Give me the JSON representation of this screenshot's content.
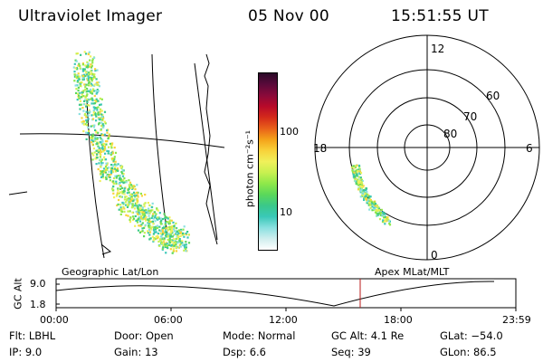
{
  "header": {
    "instrument": "Ultraviolet Imager",
    "date": "05 Nov 00",
    "time": "15:51:55 UT"
  },
  "colorbar": {
    "unit_label": "photon cm⁻²s⁻¹",
    "ticks": [
      "100",
      "10"
    ],
    "colors": [
      "#2a0a28",
      "#5a0a3a",
      "#8a0a3a",
      "#b80a2a",
      "#d42a1a",
      "#e8601a",
      "#f4a21a",
      "#f8d23a",
      "#f0f05a",
      "#c8f050",
      "#8ee84a",
      "#5ad85a",
      "#3ac88a",
      "#3ac8b8",
      "#8ae0e0",
      "#cfeeee",
      "#ffffff"
    ]
  },
  "left_panel": {
    "label": "Geographic Lat/Lon"
  },
  "right_panel": {
    "label": "Apex MLat/MLT",
    "mlt_labels": [
      "12",
      "18",
      "6",
      "0"
    ],
    "lat_labels": [
      "60",
      "70",
      "80"
    ]
  },
  "altitude_plot": {
    "ylabel": "GC Alt",
    "yticks": [
      "9.0",
      "1.8"
    ],
    "time_ticks": [
      "00:00",
      "06:00",
      "12:00",
      "18:00",
      "23:59"
    ],
    "marker_color": "#b81818"
  },
  "footer": {
    "row1": [
      {
        "key": "Flt:",
        "value": "LBHL"
      },
      {
        "key": "Door:",
        "value": "Open"
      },
      {
        "key": "Mode:",
        "value": "Normal"
      },
      {
        "key": "GC Alt:",
        "value": "4.1 Re"
      },
      {
        "key": "GLat:",
        "value": "−54.0"
      }
    ],
    "row2": [
      {
        "key": "IP:",
        "value": "9.0"
      },
      {
        "key": "Gain:",
        "value": "13"
      },
      {
        "key": "Dsp:",
        "value": "6.6"
      },
      {
        "key": "Seq:",
        "value": "39"
      },
      {
        "key": "GLon:",
        "value": "86.5"
      }
    ]
  }
}
